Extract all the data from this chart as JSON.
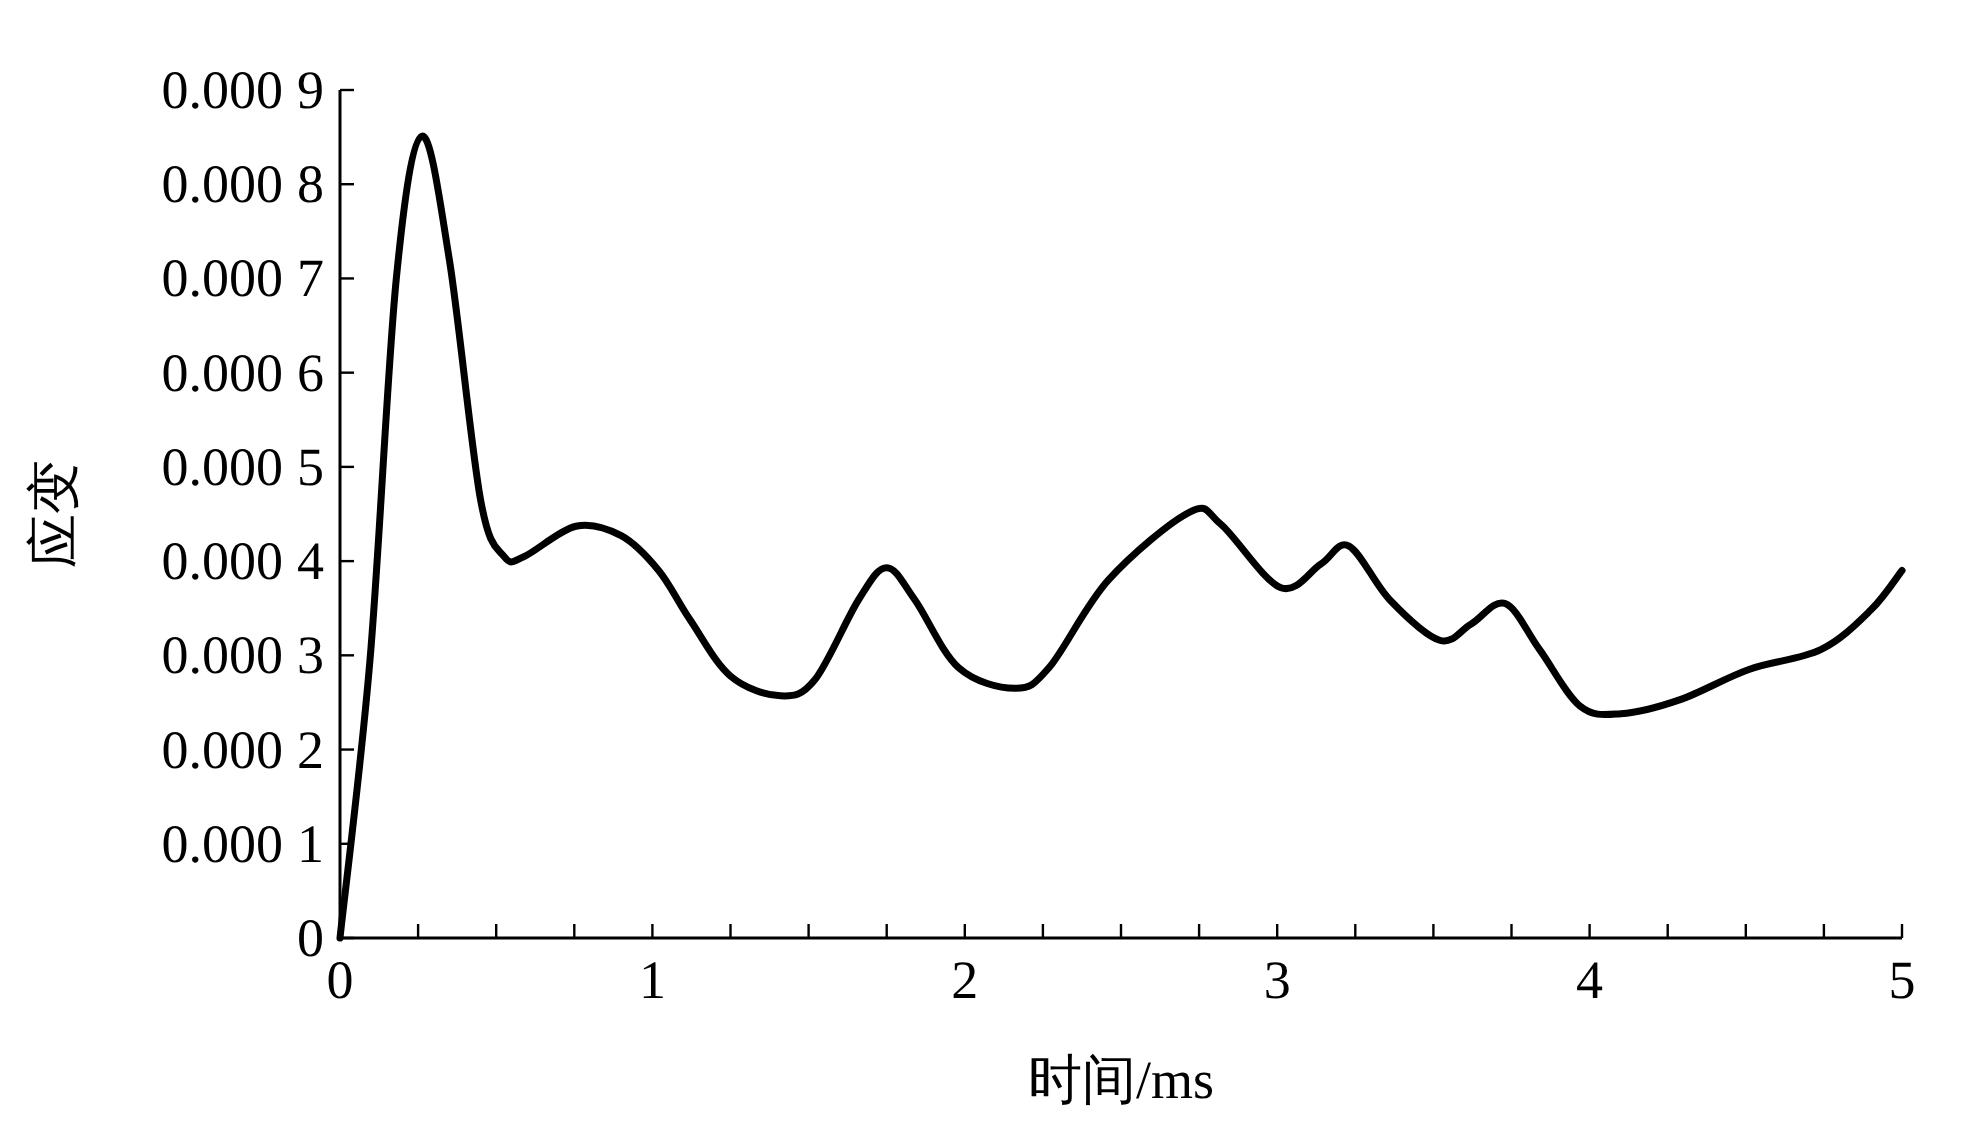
{
  "chart_data": {
    "type": "line",
    "xlabel": "时间/ms",
    "ylabel": "应变",
    "grid": false,
    "marker": "none",
    "line_style": "solid",
    "xlim": [
      0,
      5
    ],
    "ylim": [
      0,
      0.0009
    ],
    "xticks": [
      0,
      {
        "value": 0.25,
        "label": null
      },
      {
        "value": 0.5,
        "label": null
      },
      {
        "value": 0.75,
        "label": null
      },
      1,
      {
        "value": 1.25,
        "label": null
      },
      {
        "value": 1.5,
        "label": null
      },
      {
        "value": 1.75,
        "label": null
      },
      2,
      {
        "value": 2.25,
        "label": null
      },
      {
        "value": 2.5,
        "label": null
      },
      {
        "value": 2.75,
        "label": null
      },
      3,
      {
        "value": 3.25,
        "label": null
      },
      {
        "value": 3.5,
        "label": null
      },
      {
        "value": 3.75,
        "label": null
      },
      4,
      {
        "value": 4.25,
        "label": null
      },
      {
        "value": 4.5,
        "label": null
      },
      {
        "value": 4.75,
        "label": null
      },
      5
    ],
    "yticks": [
      0,
      0.0001,
      0.0002,
      0.0003,
      0.0004,
      0.0005,
      0.0006,
      0.0007,
      0.0008,
      0.0009
    ],
    "series": [
      {
        "color": "#000000",
        "x": [
          0,
          0.096,
          0.18,
          0.262,
          0.35,
          0.45,
          0.525,
          0.59,
          0.755,
          0.9,
          1.02,
          1.12,
          1.25,
          1.41,
          1.52,
          1.66,
          1.75,
          1.84,
          1.98,
          2.16,
          2.27,
          2.46,
          2.72,
          2.82,
          3.01,
          3.14,
          3.23,
          3.36,
          3.52,
          3.62,
          3.73,
          3.84,
          3.97,
          4.1,
          4.29,
          4.51,
          4.74,
          4.9,
          5.0
        ],
        "values": [
          0,
          0.000295,
          0.000699,
          0.000851,
          0.00072,
          0.000465,
          0.000405,
          0.000405,
          0.000437,
          0.000427,
          0.00039,
          0.000338,
          0.000278,
          0.000257,
          0.000274,
          0.000359,
          0.000393,
          0.000359,
          0.000287,
          0.000265,
          0.000287,
          0.00038,
          0.000452,
          0.000439,
          0.000372,
          0.000397,
          0.000416,
          0.000359,
          0.000316,
          0.000333,
          0.000355,
          0.000306,
          0.000246,
          0.000238,
          0.000253,
          0.000285,
          0.000306,
          0.000348,
          0.00039
        ]
      }
    ]
  }
}
